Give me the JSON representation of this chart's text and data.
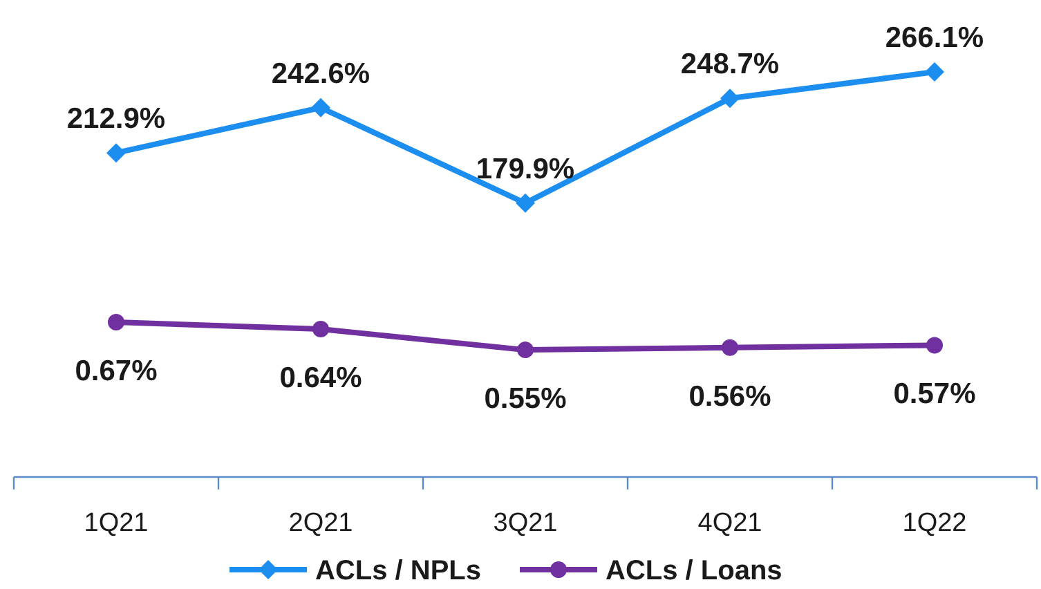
{
  "chart_data": [
    {
      "type": "line",
      "categories": [
        null,
        null,
        null,
        null,
        null
      ],
      "series": [
        {
          "name": "ACLs / NPLs",
          "color": "#1b8ef0",
          "values": [
            212.9,
            242.6,
            179.9,
            248.7,
            266.1
          ],
          "value_labels": [
            "212.9%",
            "242.6%",
            "179.9%",
            "248.7%",
            "266.1%"
          ],
          "marker": "diamond"
        }
      ],
      "legend": "bottom",
      "tick_labels": false
    },
    {
      "type": "line",
      "categories": [
        "1Q21",
        "2Q21",
        "3Q21",
        "4Q21",
        "1Q22"
      ],
      "series": [
        {
          "name": "ACLs / Loans",
          "color": "#7030a0",
          "values": [
            0.67,
            0.64,
            0.55,
            0.56,
            0.57
          ],
          "value_labels": [
            "0.67%",
            "0.64%",
            "0.55%",
            "0.56%",
            "0.57%"
          ],
          "marker": "circle"
        }
      ],
      "legend": "bottom",
      "tick_labels": "x"
    }
  ]
}
